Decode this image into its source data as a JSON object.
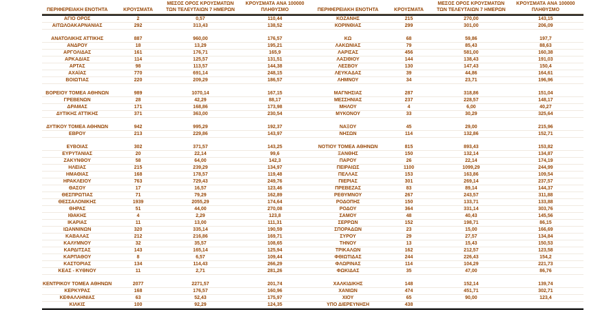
{
  "meta": {
    "text_color": "#974706",
    "heavy_rule_color": "#1f1f1f",
    "background_color": "#ffffff"
  },
  "columns": [
    "ΠΕΡΙΦΕΡΕΙΑΚΗ ΕΝΟΤΗΤΑ",
    "ΚΡΟΥΣΜΑΤΑ",
    "ΜΕΣΟΣ ΟΡΟΣ ΚΡΟΥΣΜΑΤΩΝ\nΤΩΝ ΤΕΛΕΥΤΑΙΩΝ 7 ΗΜΕΡΩΝ",
    "ΚΡΟΥΣΜΑΤΑ ΑΝΑ 100000\nΠΛΗΘΥΣΜΟ"
  ],
  "left_table": {
    "rows": [
      [
        "ΑΓΙΟ ΟΡΟΣ",
        "2",
        "0,57",
        "110,44"
      ],
      [
        "ΑΙΤΩΛΟΑΚΑΡΝΑΝΙΑΣ",
        "292",
        "313,43",
        "138,52"
      ],
      [
        "",
        "",
        "",
        ""
      ],
      [
        "ΑΝΑΤΟΛΙΚΗΣ ΑΤΤΙΚΗΣ",
        "887",
        "960,00",
        "176,57"
      ],
      [
        "ΑΝΔΡΟΥ",
        "18",
        "13,29",
        "195,21"
      ],
      [
        "ΑΡΓΟΛΙΔΑΣ",
        "161",
        "176,71",
        "165,9"
      ],
      [
        "ΑΡΚΑΔΙΑΣ",
        "114",
        "125,57",
        "131,51"
      ],
      [
        "ΑΡΤΑΣ",
        "98",
        "113,57",
        "144,38"
      ],
      [
        "ΑΧΑΪΑΣ",
        "770",
        "691,14",
        "248,15"
      ],
      [
        "ΒΟΙΩΤΙΑΣ",
        "220",
        "209,29",
        "186,57"
      ],
      [
        "",
        "",
        "",
        ""
      ],
      [
        "ΒΟΡΕΙΟΥ ΤΟΜΕΑ ΑΘΗΝΩΝ",
        "989",
        "1070,14",
        "167,15"
      ],
      [
        "ΓΡΕΒΕΝΩΝ",
        "28",
        "42,29",
        "88,17"
      ],
      [
        "ΔΡΑΜΑΣ",
        "171",
        "168,86",
        "173,98"
      ],
      [
        "ΔΥΤΙΚΗΣ ΑΤΤΙΚΗΣ",
        "371",
        "363,00",
        "230,54"
      ],
      [
        "",
        "",
        "",
        ""
      ],
      [
        "ΔΥΤΙΚΟΥ ΤΟΜΕΑ ΑΘΗΝΩΝ",
        "942",
        "995,29",
        "192,37"
      ],
      [
        "ΕΒΡΟΥ",
        "213",
        "229,86",
        "143,97"
      ],
      [
        "",
        "",
        "",
        ""
      ],
      [
        "ΕΥΒΟΙΑΣ",
        "302",
        "371,57",
        "143,25"
      ],
      [
        "ΕΥΡΥΤΑΝΙΑΣ",
        "20",
        "22,14",
        "99,6"
      ],
      [
        "ΖΑΚΥΝΘΟΥ",
        "58",
        "64,00",
        "142,3"
      ],
      [
        "ΗΛΕΙΑΣ",
        "215",
        "239,29",
        "134,97"
      ],
      [
        "ΗΜΑΘΙΑΣ",
        "168",
        "178,57",
        "119,48"
      ],
      [
        "ΗΡΑΚΛΕΙΟΥ",
        "763",
        "729,43",
        "249,76"
      ],
      [
        "ΘΑΣΟΥ",
        "17",
        "16,57",
        "123,46"
      ],
      [
        "ΘΕΣΠΡΩΤΙΑΣ",
        "71",
        "79,29",
        "162,89"
      ],
      [
        "ΘΕΣΣΑΛΟΝΙΚΗΣ",
        "1939",
        "2055,29",
        "174,64"
      ],
      [
        "ΘΗΡΑΣ",
        "51",
        "44,00",
        "270,08"
      ],
      [
        "ΙΘΑΚΗΣ",
        "4",
        "2,29",
        "123,8"
      ],
      [
        "ΙΚΑΡΙΑΣ",
        "11",
        "13,00",
        "111,31"
      ],
      [
        "ΙΩΑΝΝΙΝΩΝ",
        "320",
        "335,14",
        "190,59"
      ],
      [
        "ΚΑΒΑΛΑΣ",
        "212",
        "216,86",
        "169,71"
      ],
      [
        "ΚΑΛΥΜΝΟΥ",
        "32",
        "35,57",
        "108,65"
      ],
      [
        "ΚΑΡΔΙΤΣΑΣ",
        "143",
        "165,14",
        "125,94"
      ],
      [
        "ΚΑΡΠΑΘΟΥ",
        "8",
        "6,57",
        "109,44"
      ],
      [
        "ΚΑΣΤΟΡΙΑΣ",
        "134",
        "114,43",
        "266,29"
      ],
      [
        "ΚΕΑΣ - ΚΥΘΝΟΥ",
        "11",
        "2,71",
        "281,26"
      ],
      [
        "",
        "",
        "",
        ""
      ],
      [
        "ΚΕΝΤΡΙΚΟΥ ΤΟΜΕΑ ΑΘΗΝΩΝ",
        "2077",
        "2271,57",
        "201,74"
      ],
      [
        "ΚΕΡΚΥΡΑΣ",
        "168",
        "176,57",
        "160,96"
      ],
      [
        "ΚΕΦΑΛΛΗΝΙΑΣ",
        "63",
        "52,43",
        "175,97"
      ],
      [
        "ΚΙΛΚΙΣ",
        "100",
        "92,29",
        "124,35"
      ]
    ]
  },
  "right_table": {
    "rows": [
      [
        "ΚΟΖΑΝΗΣ",
        "215",
        "270,00",
        "143,15"
      ],
      [
        "ΚΟΡΙΝΘΙΑΣ",
        "299",
        "301,00",
        "206,09"
      ],
      [
        "",
        "",
        "",
        ""
      ],
      [
        "ΚΩ",
        "68",
        "59,86",
        "197,7"
      ],
      [
        "ΛΑΚΩΝΙΑΣ",
        "79",
        "85,43",
        "88,63"
      ],
      [
        "ΛΑΡΙΣΑΣ",
        "456",
        "581,00",
        "160,38"
      ],
      [
        "ΛΑΣΙΘΙΟΥ",
        "144",
        "138,43",
        "191,03"
      ],
      [
        "ΛΕΣΒΟΥ",
        "130",
        "147,43",
        "150,4"
      ],
      [
        "ΛΕΥΚΑΔΑΣ",
        "39",
        "44,86",
        "164,61"
      ],
      [
        "ΛΗΜΝΟΥ",
        "34",
        "23,71",
        "196,96"
      ],
      [
        "",
        "",
        "",
        ""
      ],
      [
        "ΜΑΓΝΗΣΙΑΣ",
        "287",
        "318,86",
        "151,04"
      ],
      [
        "ΜΕΣΣΗΝΙΑΣ",
        "237",
        "228,57",
        "148,17"
      ],
      [
        "ΜΗΛΟΥ",
        "4",
        "6,00",
        "40,27"
      ],
      [
        "ΜΥΚΟΝΟΥ",
        "33",
        "30,29",
        "325,64"
      ],
      [
        "",
        "",
        "",
        ""
      ],
      [
        "ΝΑΞΟΥ",
        "45",
        "29,00",
        "215,96"
      ],
      [
        "ΝΗΣΩΝ",
        "114",
        "132,86",
        "152,71"
      ],
      [
        "",
        "",
        "",
        ""
      ],
      [
        "ΝΟΤΙΟΥ ΤΟΜΕΑ ΑΘΗΝΩΝ",
        "815",
        "893,43",
        "153,82"
      ],
      [
        "ΞΑΝΘΗΣ",
        "150",
        "132,14",
        "134,87"
      ],
      [
        "ΠΑΡΟΥ",
        "26",
        "22,14",
        "174,19"
      ],
      [
        "ΠΕΙΡΑΙΩΣ",
        "1100",
        "1099,29",
        "244,99"
      ],
      [
        "ΠΕΛΛΑΣ",
        "153",
        "163,86",
        "109,54"
      ],
      [
        "ΠΙΕΡΙΑΣ",
        "301",
        "269,14",
        "237,57"
      ],
      [
        "ΠΡΕΒΕΖΑΣ",
        "83",
        "89,14",
        "144,37"
      ],
      [
        "ΡΕΘΥΜΝΟΥ",
        "267",
        "243,57",
        "311,88"
      ],
      [
        "ΡΟΔΟΠΗΣ",
        "150",
        "133,71",
        "133,88"
      ],
      [
        "ΡΟΔΟΥ",
        "364",
        "331,14",
        "303,76"
      ],
      [
        "ΣΑΜΟΥ",
        "48",
        "40,43",
        "145,56"
      ],
      [
        "ΣΕΡΡΩΝ",
        "152",
        "198,71",
        "86,15"
      ],
      [
        "ΣΠΟΡΑΔΩΝ",
        "23",
        "15,00",
        "166,69"
      ],
      [
        "ΣΥΡΟΥ",
        "29",
        "27,57",
        "134,84"
      ],
      [
        "ΤΗΝΟΥ",
        "13",
        "15,43",
        "150,53"
      ],
      [
        "ΤΡΙΚΑΛΩΝ",
        "162",
        "212,57",
        "123,58"
      ],
      [
        "ΦΘΙΩΤΙΔΑΣ",
        "244",
        "226,43",
        "154,2"
      ],
      [
        "ΦΛΩΡΙΝΑΣ",
        "114",
        "104,29",
        "221,73"
      ],
      [
        "ΦΩΚΙΔΑΣ",
        "35",
        "47,00",
        "86,76"
      ],
      [
        "",
        "",
        "",
        ""
      ],
      [
        "ΧΑΛΚΙΔΙΚΗΣ",
        "148",
        "152,14",
        "139,74"
      ],
      [
        "ΧΑΝΙΩΝ",
        "474",
        "451,71",
        "302,71"
      ],
      [
        "ΧΙΟΥ",
        "65",
        "90,00",
        "123,4"
      ],
      [
        "ΥΠΟ ΔΙΕΡΕΥΝΗΣΗ",
        "438",
        "",
        ""
      ]
    ]
  }
}
